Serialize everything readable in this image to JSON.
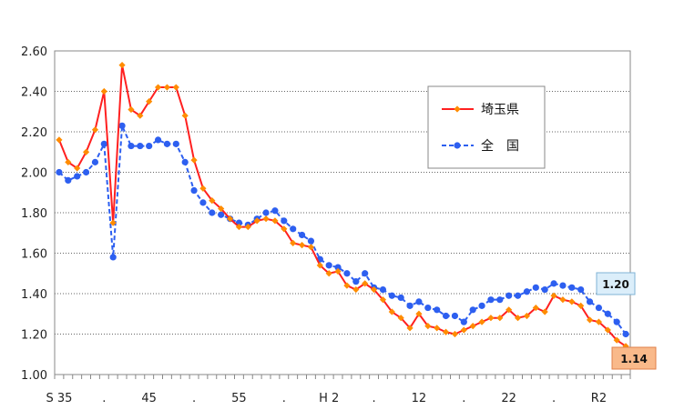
{
  "chart_data": {
    "type": "line",
    "ylim": [
      1.0,
      2.6
    ],
    "y_ticks": [
      "2.60",
      "2.40",
      "2.20",
      "2.00",
      "1.80",
      "1.60",
      "1.40",
      "1.20",
      "1.00"
    ],
    "x_tick_labels": [
      "S 35",
      ".",
      "45",
      ".",
      "55",
      ".",
      "H 2",
      ".",
      "12",
      ".",
      "22",
      ".",
      "R2"
    ],
    "grid": "horizontal dotted",
    "legend_position": "upper-right",
    "series": [
      {
        "name": "埼玉県",
        "color": "#ff2020",
        "marker": "diamond",
        "marker_color": "#ff8c00",
        "line_style": "solid",
        "end_label": "1.14",
        "end_label_bg": "#f9b98a",
        "values": [
          2.16,
          2.05,
          2.02,
          2.1,
          2.21,
          2.4,
          1.75,
          2.53,
          2.31,
          2.28,
          2.35,
          2.42,
          2.42,
          2.42,
          2.28,
          2.06,
          1.92,
          1.86,
          1.82,
          1.77,
          1.73,
          1.73,
          1.76,
          1.77,
          1.76,
          1.72,
          1.65,
          1.64,
          1.63,
          1.54,
          1.5,
          1.51,
          1.44,
          1.42,
          1.45,
          1.42,
          1.37,
          1.31,
          1.28,
          1.23,
          1.3,
          1.24,
          1.23,
          1.21,
          1.2,
          1.22,
          1.24,
          1.26,
          1.28,
          1.28,
          1.32,
          1.28,
          1.29,
          1.33,
          1.31,
          1.39,
          1.37,
          1.36,
          1.34,
          1.27,
          1.26,
          1.22,
          1.17,
          1.14
        ]
      },
      {
        "name": "全　国",
        "color": "#2d5ff0",
        "marker": "circle",
        "marker_color": "#2d5ff0",
        "line_style": "dashed",
        "end_label": "1.20",
        "end_label_bg": "#dbeefa",
        "values": [
          2.0,
          1.96,
          1.98,
          2.0,
          2.05,
          2.14,
          1.58,
          2.23,
          2.13,
          2.13,
          2.13,
          2.16,
          2.14,
          2.14,
          2.05,
          1.91,
          1.85,
          1.8,
          1.79,
          1.77,
          1.75,
          1.74,
          1.77,
          1.8,
          1.81,
          1.76,
          1.72,
          1.69,
          1.66,
          1.57,
          1.54,
          1.53,
          1.5,
          1.46,
          1.5,
          1.43,
          1.42,
          1.39,
          1.38,
          1.34,
          1.36,
          1.33,
          1.32,
          1.29,
          1.29,
          1.26,
          1.32,
          1.34,
          1.37,
          1.37,
          1.39,
          1.39,
          1.41,
          1.43,
          1.42,
          1.45,
          1.44,
          1.43,
          1.42,
          1.36,
          1.33,
          1.3,
          1.26,
          1.2
        ]
      }
    ]
  }
}
